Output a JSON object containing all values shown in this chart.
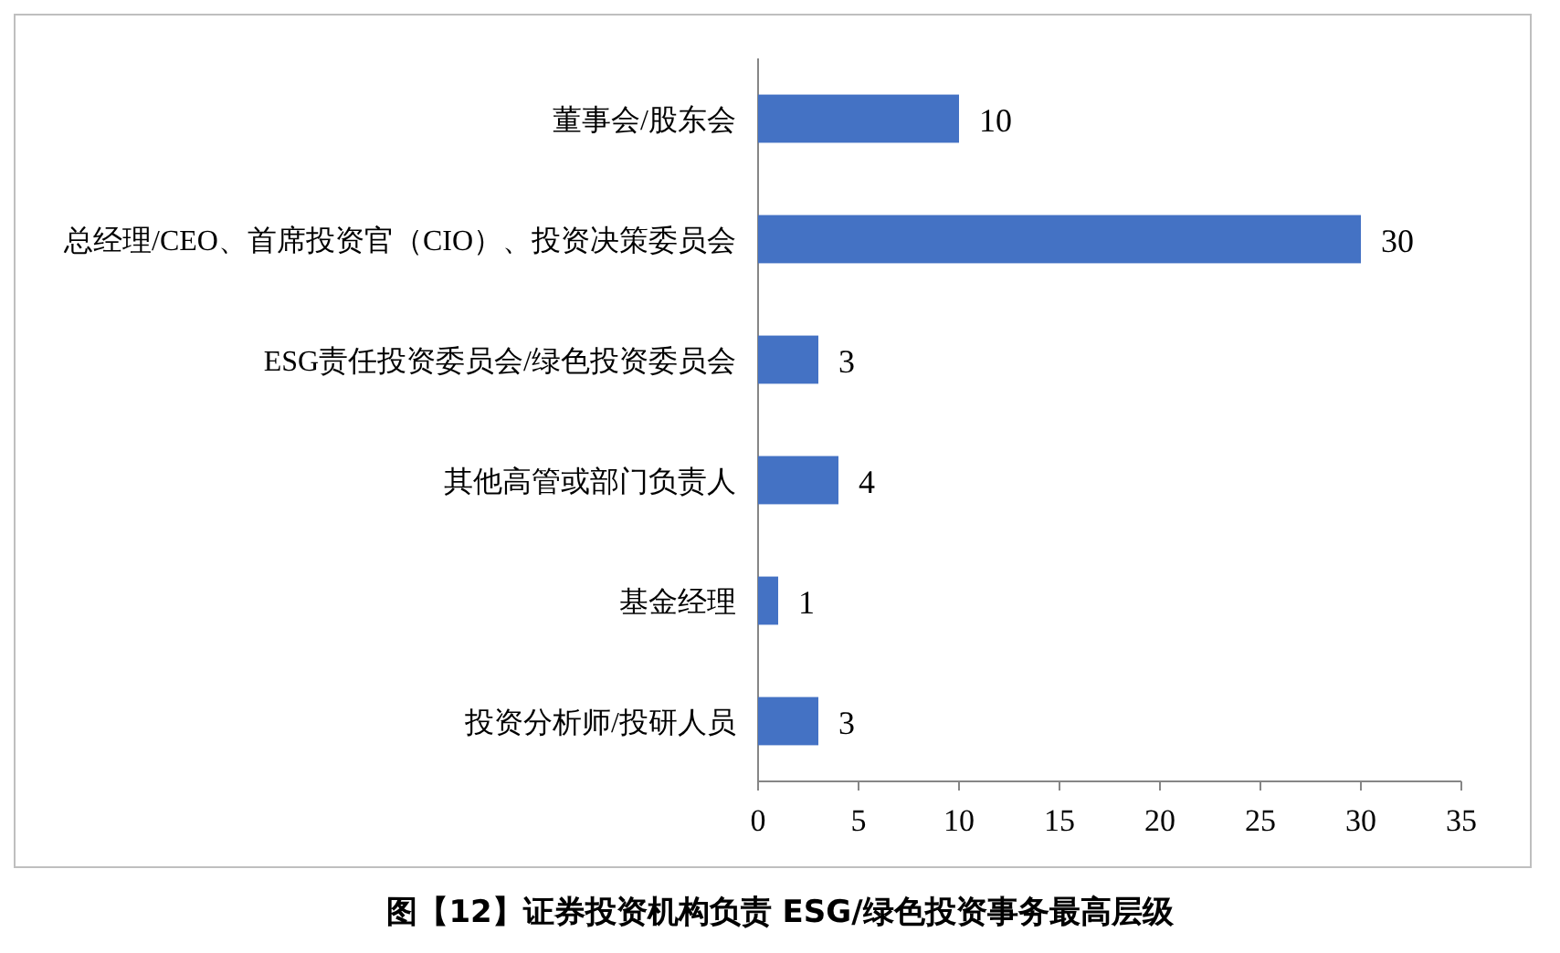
{
  "chart_data": {
    "type": "bar",
    "orientation": "horizontal",
    "title": "图【12】证券投资机构负责 ESG/绿色投资事务最高层级",
    "categories": [
      "董事会/股东会",
      "总经理/CEO、首席投资官（CIO）、投资决策委员会",
      "ESG责任投资委员会/绿色投资委员会",
      "其他高管或部门负责人",
      "基金经理",
      "投资分析师/投研人员"
    ],
    "values": [
      10,
      30,
      3,
      4,
      1,
      3
    ],
    "color": "#4472c4",
    "xlim": [
      0,
      35
    ],
    "xticks": [
      0,
      5,
      10,
      15,
      20,
      25,
      30,
      35
    ],
    "data_labels": true
  }
}
